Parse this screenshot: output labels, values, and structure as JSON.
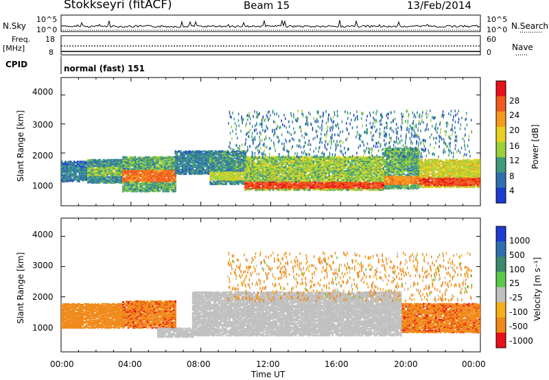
{
  "header": {
    "station": "Stokkseyri (fitACF)",
    "beam": "Beam 15",
    "date": "13/Feb/2014"
  },
  "status_panels": {
    "nsky_label": "N.Sky",
    "nsky_ticks": [
      "10^5",
      "10^0"
    ],
    "nsearch_label": "N.Search",
    "nsearch_ticks": [
      "10^5",
      "10^0"
    ],
    "freq_label": "Freq.",
    "freq_unit": "[MHz]",
    "freq_ticks": [
      "18",
      "8"
    ],
    "nave_label": "Nave",
    "nave_ticks": [
      "60",
      "0"
    ],
    "cpid_label": "CPID",
    "cpid_value": "normal (fast) 151"
  },
  "axes": {
    "ylabel": "Slant Range [km]",
    "xlabel": "Time UT",
    "y_ticks": [
      "4000",
      "3000",
      "2000",
      "1000"
    ],
    "x_ticks": [
      "00:00",
      "04:00",
      "08:00",
      "12:00",
      "16:00",
      "20:00",
      "00:00"
    ]
  },
  "colorbars": {
    "power_label": "Power [dB]",
    "power_ticks": [
      "28",
      "24",
      "20",
      "16",
      "12",
      "8",
      "4"
    ],
    "velocity_label": "Velocity [m s⁻¹]",
    "velocity_ticks": [
      "1000",
      "500",
      "100",
      "25",
      "-25",
      "-100",
      "-500",
      "-1000"
    ]
  },
  "chart_data": [
    {
      "type": "heatmap",
      "title": "",
      "xlabel": "",
      "ylabel": "Slant Range [km]",
      "colorbar_label": "Power [dB]",
      "x_unit": "hours UT",
      "xlim": [
        0,
        24
      ],
      "ylim": [
        180,
        4600
      ],
      "colorbar_range": [
        0,
        30
      ],
      "colors": {
        "low": "#1e3cd0",
        "mid": "#3e9a7a",
        "green": "#9bd13b",
        "yellow": "#f2c319",
        "orange": "#f07a1a",
        "high": "#e8101a"
      },
      "bands": [
        {
          "t0": 0,
          "t1": 1.5,
          "r_lo": 1050,
          "r_hi": 1750,
          "core_lo": 1200,
          "core_hi": 1450,
          "p_core": 12,
          "p_edge": 5
        },
        {
          "t0": 1.5,
          "t1": 3.5,
          "r_lo": 1000,
          "r_hi": 1800,
          "core_lo": 1250,
          "core_hi": 1550,
          "p_core": 16,
          "p_edge": 6
        },
        {
          "t0": 3.5,
          "t1": 6.5,
          "r_lo": 700,
          "r_hi": 1900,
          "core_lo": 1050,
          "core_hi": 1450,
          "p_core": 26,
          "p_edge": 8
        },
        {
          "t0": 6.5,
          "t1": 8.5,
          "r_lo": 1300,
          "r_hi": 2100,
          "core_lo": 1500,
          "core_hi": 1800,
          "p_core": 12,
          "p_edge": 5
        },
        {
          "t0": 8.5,
          "t1": 10.5,
          "r_lo": 950,
          "r_hi": 2100,
          "core_lo": 1100,
          "core_hi": 1400,
          "p_core": 18,
          "p_edge": 6
        },
        {
          "t0": 10.5,
          "t1": 18.5,
          "r_lo": 750,
          "r_hi": 1900,
          "core_lo": 800,
          "core_hi": 1050,
          "p_core": 28,
          "p_edge": 10
        },
        {
          "t0": 18.5,
          "t1": 20.5,
          "r_lo": 800,
          "r_hi": 2200,
          "core_lo": 950,
          "core_hi": 1250,
          "p_core": 24,
          "p_edge": 8
        },
        {
          "t0": 20.5,
          "t1": 24,
          "r_lo": 850,
          "r_hi": 1800,
          "core_lo": 900,
          "core_hi": 1200,
          "p_core": 28,
          "p_edge": 12
        }
      ],
      "scatter_region": {
        "t0": 9.5,
        "t1": 23.5,
        "r_lo": 1900,
        "r_hi": 3500,
        "p": 5
      }
    },
    {
      "type": "heatmap",
      "title": "",
      "xlabel": "Time UT",
      "ylabel": "Slant Range [km]",
      "colorbar_label": "Velocity [m s⁻¹]",
      "x_unit": "hours UT",
      "xlim": [
        0,
        24
      ],
      "ylim": [
        180,
        4600
      ],
      "colorbar_range": [
        -1000,
        1000
      ],
      "colors": {
        "ground": "#c0c0c0",
        "neg_high": "#e8101a",
        "neg_mid": "#f08a1a",
        "pos_low": "#5cc84a",
        "pos_mid": "#3b8a6e",
        "pos_high": "#1e3cd0"
      },
      "bands": [
        {
          "t0": 0,
          "t1": 3.5,
          "r_lo": 1000,
          "r_hi": 1800,
          "v": -300
        },
        {
          "t0": 3.5,
          "t1": 6.5,
          "r_lo": 1000,
          "r_hi": 1900,
          "v": -400
        },
        {
          "t0": 5.5,
          "t1": 7.5,
          "r_lo": 700,
          "r_hi": 1000,
          "v": 0
        },
        {
          "t0": 7.5,
          "t1": 19.5,
          "r_lo": 750,
          "r_hi": 2200,
          "v": 0
        },
        {
          "t0": 19.5,
          "t1": 24,
          "r_lo": 850,
          "r_hi": 1800,
          "v": -400
        }
      ],
      "scatter_region": {
        "t0": 9.5,
        "t1": 23.5,
        "r_lo": 1900,
        "r_hi": 3500,
        "v": -200
      }
    }
  ]
}
